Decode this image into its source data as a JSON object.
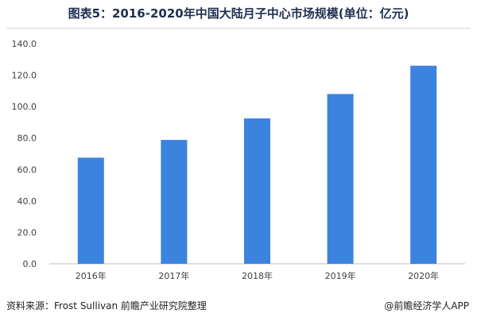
{
  "title": "图表5：2016-2020年中国大陆月子中心市场规模(单位：亿元)",
  "source": "资料来源：Frost Sullivan 前瞻产业研究院整理",
  "credit": "@前瞻经济学人APP",
  "colors": {
    "bar": "#3b83df",
    "axis": "#bfbfbf",
    "text": "#404040"
  },
  "chart_data": {
    "type": "bar",
    "categories": [
      "2016年",
      "2017年",
      "2018年",
      "2019年",
      "2020年"
    ],
    "values": [
      67.5,
      78.8,
      92.5,
      108.0,
      126.0
    ],
    "title": "图表5：2016-2020年中国大陆月子中心市场规模(单位：亿元)",
    "xlabel": "",
    "ylabel": "",
    "ylim": [
      0,
      140
    ],
    "yticks": [
      "0.0",
      "20.0",
      "40.0",
      "60.0",
      "80.0",
      "100.0",
      "120.0",
      "140.0"
    ],
    "grid": false,
    "legend": "none"
  }
}
